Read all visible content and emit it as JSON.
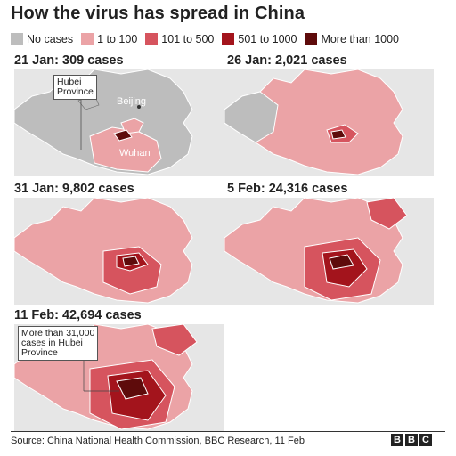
{
  "title": "How the virus has spread in China",
  "legend": [
    {
      "label": "No cases",
      "color": "#bdbdbd"
    },
    {
      "label": "1 to 100",
      "color": "#eba3a6"
    },
    {
      "label": "101 to 500",
      "color": "#d6545e"
    },
    {
      "label": "501 to 1000",
      "color": "#a3141c"
    },
    {
      "label": "More than 1000",
      "color": "#5e0b0b"
    }
  ],
  "panels": [
    {
      "title": "21 Jan: 309 cases",
      "labels": {
        "province": "Hubei\nProvince",
        "beijing": "Beijing",
        "wuhan": "Wuhan"
      }
    },
    {
      "title": "26 Jan: 2,021 cases"
    },
    {
      "title": "31 Jan: 9,802 cases"
    },
    {
      "title": "5 Feb: 24,316 cases"
    },
    {
      "title": "11 Feb: 42,694 cases",
      "labels": {
        "callout": "More than 31,000\ncases in Hubei\nProvince"
      }
    }
  ],
  "source": "Source: China National Health Commission, BBC Research, 11 Feb",
  "brand": [
    "B",
    "B",
    "C"
  ]
}
